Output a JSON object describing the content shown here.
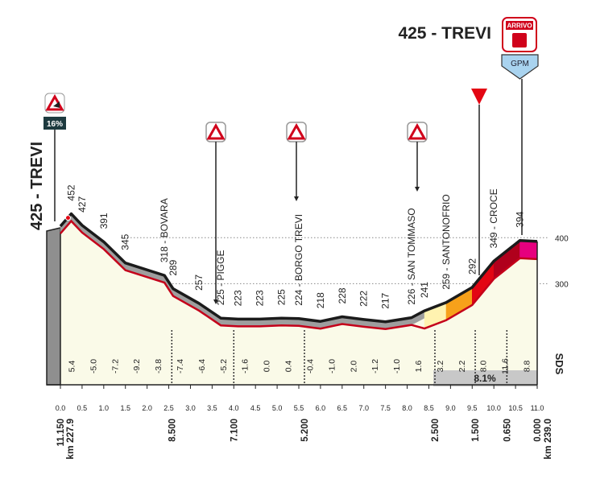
{
  "chart_data": {
    "type": "profile",
    "finish": "425 - TREVI",
    "finish_badge": "ARRIVO",
    "gpm_badge": "GPM",
    "max_gradient": "16%",
    "avg_gradient": "8.1%",
    "brand": "SDS",
    "start_km": "km 227.9",
    "end_km": "km 239.0",
    "x": [
      0,
      0.25,
      0.5,
      1.0,
      1.5,
      2.4,
      2.6,
      3.2,
      3.7,
      4.1,
      4.6,
      5.1,
      5.5,
      6.0,
      6.5,
      7.0,
      7.5,
      8.1,
      8.4,
      8.9,
      9.5,
      10.0,
      10.6,
      11.0
    ],
    "values": [
      425,
      452,
      427,
      391,
      345,
      318,
      289,
      257,
      225,
      223,
      223,
      225,
      224,
      218,
      228,
      222,
      217,
      226,
      241,
      259,
      292,
      349,
      394,
      392
    ],
    "value_labels": [
      "425 - TREVI",
      "452",
      "427",
      "391",
      "345",
      "318 - BOVARA",
      "289",
      "257",
      "225 - PIGGE",
      "223",
      "223",
      "225",
      "224 - BORGO TREVI",
      "218",
      "228",
      "222",
      "217",
      "226 - SAN TOMMASO",
      "241",
      "259 - SANTONOFRIO",
      "292",
      "349 - CROCE",
      "394",
      null
    ],
    "ribbon_colors": [
      "#9e9e9e",
      "#9e9e9e",
      "#9e9e9e",
      "#9e9e9e",
      "#9e9e9e",
      "#9e9e9e",
      "#9e9e9e",
      "#9e9e9e",
      "#9e9e9e",
      "#9e9e9e",
      "#9e9e9e",
      "#9e9e9e",
      "#9e9e9e",
      "#9e9e9e",
      "#9e9e9e",
      "#9e9e9e",
      "#9e9e9e",
      "#9e9e9e",
      "#fff3b0",
      "#f7a11a",
      "#e30613",
      "#b0001c",
      "#e6007e"
    ],
    "gradients": [
      "5.4",
      "-5.0",
      "-7.2",
      "-9.2",
      "-3.8",
      "-7.4",
      "-6.4",
      "-5.2",
      "-1.6",
      "0.0",
      "0.4",
      "-0.4",
      "-1.0",
      "2.0",
      "-1.2",
      "-1.0",
      "1.6",
      "3.2",
      "2.2",
      "8.0",
      "11.6",
      "8.8"
    ],
    "remaining": [
      {
        "km": 0,
        "label": "11.150"
      },
      {
        "km": 2.57,
        "label": "8.500"
      },
      {
        "km": 4.0,
        "label": "7.100"
      },
      {
        "km": 5.63,
        "label": "5.200"
      },
      {
        "km": 8.64,
        "label": "2.500"
      },
      {
        "km": 9.57,
        "label": "1.500"
      },
      {
        "km": 10.3,
        "label": "0.650"
      },
      {
        "km": 11.0,
        "label": "0.000"
      }
    ],
    "xlim": [
      0,
      11
    ],
    "xticks": [
      {
        "value": 0,
        "label": "0.0"
      },
      0.5,
      {
        "value": 1,
        "label": "1.0"
      },
      1.5,
      {
        "value": 2,
        "label": "2.0"
      },
      2.5,
      {
        "value": 3,
        "label": "3.0"
      },
      3.5,
      {
        "value": 4,
        "label": "4.0"
      },
      4.5,
      {
        "value": 5,
        "label": "5.0"
      },
      5.5,
      {
        "value": 6,
        "label": "6.0"
      },
      6.5,
      {
        "value": 7,
        "label": "7.0"
      },
      7.5,
      {
        "value": 8,
        "label": "8.0"
      },
      8.5,
      {
        "value": 9,
        "label": "9.0"
      },
      9.5,
      {
        "value": 10,
        "label": "10.0"
      },
      10.5,
      {
        "value": 11,
        "label": "11.0"
      }
    ],
    "ylim": [
      80,
      700
    ],
    "yticks": [
      300,
      400
    ]
  }
}
